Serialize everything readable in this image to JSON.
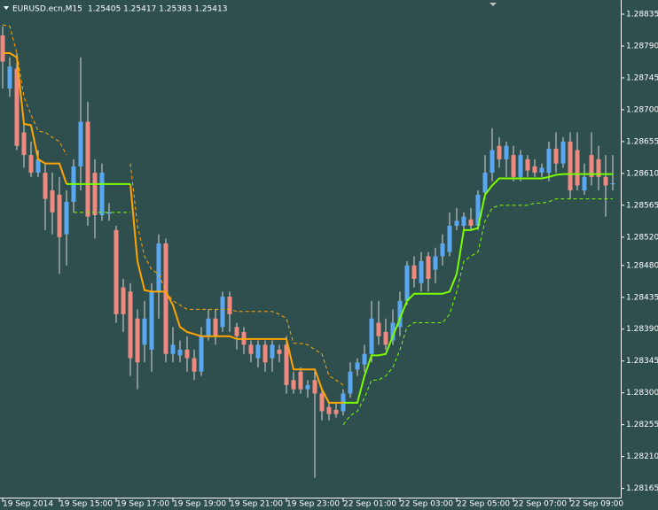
{
  "chart_data": {
    "type": "candlestick",
    "title": "EURUSD.ecn,M15",
    "subtitle": "1.25405 1.25417 1.25383 1.25413",
    "background": "#2f4f4f",
    "up_color": "#5aa7f0",
    "down_color": "#f08a80",
    "wick_color": "#d8d8d8",
    "categories": [
      "19 Sep 2014",
      null,
      null,
      null,
      null,
      null,
      null,
      null,
      "19 Sep 15:00",
      null,
      null,
      null,
      null,
      null,
      null,
      null,
      "19 Sep 17:00",
      null,
      null,
      null,
      null,
      null,
      null,
      null,
      "19 Sep 19:00",
      null,
      null,
      null,
      null,
      null,
      null,
      null,
      "19 Sep 21:00",
      null,
      null,
      null,
      null,
      null,
      null,
      null,
      "19 Sep 23:00",
      null,
      null,
      null,
      null,
      null,
      null,
      null,
      "22 Sep 01:00",
      null,
      null,
      null,
      null,
      null,
      null,
      null,
      "22 Sep 03:00",
      null,
      null,
      null,
      null,
      null,
      null,
      null,
      "22 Sep 05:00",
      null,
      null,
      null,
      null,
      null,
      null,
      null,
      "22 Sep 07:00",
      null,
      null,
      null,
      null,
      null,
      null,
      null,
      "22 Sep 09:00",
      null,
      null,
      null,
      null,
      null,
      null
    ],
    "open": [
      1.28805,
      1.2873,
      1.28758,
      1.28668,
      1.28636,
      1.28611,
      1.28611,
      1.28586,
      1.2858,
      1.28524,
      1.2857,
      1.2862,
      1.28683,
      1.28611,
      1.28551,
      1.28553,
      1.2853,
      1.28449,
      1.28443,
      1.28405,
      1.28368,
      1.28361,
      1.28443,
      1.28511,
      1.28355,
      1.28353,
      1.28361,
      1.28349,
      1.2833,
      1.2838,
      1.28405,
      1.28393,
      1.28436,
      1.28393,
      1.28386,
      1.28368,
      1.28349,
      1.28368,
      1.28349,
      1.28361,
      1.28368,
      1.28318,
      1.2833,
      1.28305,
      1.28318,
      1.28299,
      1.2828,
      1.28276,
      1.28274,
      1.28299,
      1.28333,
      1.2834,
      1.28355,
      1.28399,
      1.28386,
      1.28374,
      1.28393,
      1.2843,
      1.2848,
      1.28455,
      1.28493,
      1.28474,
      1.28493,
      1.28499,
      1.28536,
      1.28536,
      1.28545,
      1.28536,
      1.28583,
      1.28611,
      1.28649,
      1.2863,
      1.28636,
      1.28605,
      1.2863,
      1.2862,
      1.28611,
      1.28611,
      1.28645,
      1.28624,
      1.28655,
      1.28643,
      1.28586,
      1.28636,
      1.2863,
      1.28605,
      1.28595
    ],
    "high": [
      1.28818,
      1.28774,
      1.2878,
      1.2868,
      1.28655,
      1.28643,
      1.28624,
      1.28611,
      1.28605,
      1.28586,
      1.2863,
      1.28774,
      1.28711,
      1.2863,
      1.28624,
      1.28568,
      1.28536,
      1.28461,
      1.28455,
      1.28418,
      1.2843,
      1.28455,
      1.28524,
      1.28518,
      1.28393,
      1.28374,
      1.2838,
      1.28361,
      1.28393,
      1.28418,
      1.28418,
      1.28443,
      1.28443,
      1.28399,
      1.28393,
      1.28374,
      1.28374,
      1.28374,
      1.28374,
      1.28368,
      1.2838,
      1.2833,
      1.28336,
      1.28318,
      1.2833,
      1.28305,
      1.28286,
      1.28286,
      1.28305,
      1.28343,
      1.28349,
      1.28368,
      1.2843,
      1.2843,
      1.28405,
      1.28418,
      1.28443,
      1.28486,
      1.28493,
      1.28499,
      1.28499,
      1.28505,
      1.28524,
      1.28555,
      1.28561,
      1.28555,
      1.28561,
      1.28586,
      1.28636,
      1.28674,
      1.28661,
      1.28655,
      1.28649,
      1.28643,
      1.28636,
      1.2863,
      1.28624,
      1.28655,
      1.28668,
      1.28661,
      1.28668,
      1.28668,
      1.28624,
      1.28668,
      1.28649,
      1.28636,
      1.28636
    ],
    "low": [
      1.2873,
      1.28718,
      1.28643,
      1.28618,
      1.28605,
      1.28605,
      1.2853,
      1.28524,
      1.28468,
      1.2848,
      1.28555,
      1.28586,
      1.28536,
      1.28518,
      1.28543,
      1.28543,
      1.28399,
      1.28386,
      1.28324,
      1.28305,
      1.28343,
      1.2833,
      1.28405,
      1.28343,
      1.28343,
      1.28343,
      1.2833,
      1.28318,
      1.28324,
      1.28374,
      1.28368,
      1.28386,
      1.28386,
      1.28361,
      1.28355,
      1.28343,
      1.28336,
      1.2833,
      1.2833,
      1.28343,
      1.28299,
      1.28299,
      1.28299,
      1.28293,
      1.2818,
      1.28261,
      1.28261,
      1.28265,
      1.28268,
      1.28293,
      1.28324,
      1.2833,
      1.28343,
      1.28368,
      1.28361,
      1.28368,
      1.2838,
      1.28424,
      1.28449,
      1.28443,
      1.28443,
      1.28455,
      1.2848,
      1.28493,
      1.2853,
      1.2853,
      1.2853,
      1.2853,
      1.28574,
      1.28599,
      1.28618,
      1.28605,
      1.28599,
      1.28599,
      1.28605,
      1.28605,
      1.28605,
      1.28599,
      1.28611,
      1.28618,
      1.28574,
      1.28586,
      1.2858,
      1.28593,
      1.28586,
      1.28549,
      1.28586
    ],
    "close": [
      1.28768,
      1.28761,
      1.28649,
      1.28636,
      1.28611,
      1.2863,
      1.28574,
      1.28555,
      1.2852,
      1.2857,
      1.2862,
      1.28683,
      1.28549,
      1.28551,
      1.28611,
      1.28555,
      1.28411,
      1.28411,
      1.28349,
      1.28343,
      1.28405,
      1.28443,
      1.28511,
      1.28355,
      1.28368,
      1.28361,
      1.28349,
      1.2833,
      1.2838,
      1.28405,
      1.2838,
      1.28436,
      1.28411,
      1.2838,
      1.28368,
      1.28355,
      1.28368,
      1.28343,
      1.28368,
      1.28355,
      1.28311,
      1.28305,
      1.28305,
      1.28311,
      1.28299,
      1.28274,
      1.2827,
      1.2827,
      1.28299,
      1.2833,
      1.28343,
      1.28355,
      1.28405,
      1.2838,
      1.28368,
      1.28399,
      1.2843,
      1.2848,
      1.28461,
      1.28486,
      1.28461,
      1.28493,
      1.28511,
      1.28536,
      1.28543,
      1.28549,
      1.28536,
      1.2858,
      1.28611,
      1.28643,
      1.2863,
      1.28649,
      1.28605,
      1.28636,
      1.28614,
      1.28611,
      1.28618,
      1.28645,
      1.28624,
      1.28655,
      1.28586,
      1.28593,
      1.28605,
      1.28605,
      1.28605,
      1.28593,
      1.28596
    ],
    "lines": [
      {
        "color": "#ffa500",
        "dashed": false,
        "values": [
          1.2878,
          1.2878,
          1.28774,
          1.2868,
          1.28678,
          1.2863,
          1.28624,
          1.28624,
          1.28624,
          1.28595,
          null,
          null,
          null,
          null,
          null,
          null,
          null,
          null,
          1.28595,
          1.28486,
          1.28445,
          1.28443,
          1.28443,
          1.28443,
          1.28424,
          1.28393,
          1.28386,
          1.28383,
          1.2838,
          1.2838,
          1.2838,
          1.2838,
          1.2838,
          1.28376,
          1.28376,
          1.28376,
          1.28376,
          1.28376,
          1.28376,
          1.28376,
          1.28376,
          1.28333,
          1.28333,
          1.28333,
          1.28333,
          1.28305,
          1.28286,
          1.28286,
          1.28286,
          null,
          null,
          null,
          null,
          null,
          null,
          null,
          null,
          null,
          null,
          null,
          null,
          null,
          null,
          null,
          null,
          null,
          null,
          null,
          null,
          null,
          null,
          null,
          null,
          null,
          null,
          null,
          null,
          null,
          null,
          null,
          null,
          null,
          null,
          null,
          null,
          null,
          null
        ]
      },
      {
        "color": "#7cfc00",
        "dashed": false,
        "values": [
          null,
          null,
          null,
          null,
          null,
          null,
          null,
          null,
          null,
          1.28595,
          1.28595,
          1.28595,
          1.28595,
          1.28595,
          1.28595,
          1.28595,
          1.28595,
          1.28595,
          1.28595,
          null,
          null,
          null,
          null,
          null,
          null,
          null,
          null,
          null,
          null,
          null,
          null,
          null,
          null,
          null,
          null,
          null,
          null,
          null,
          null,
          null,
          null,
          null,
          null,
          null,
          null,
          null,
          null,
          null,
          1.28286,
          1.28286,
          1.28286,
          1.28324,
          1.28353,
          1.28353,
          1.28355,
          1.2838,
          1.28405,
          1.2843,
          1.2844,
          1.2844,
          1.2844,
          1.2844,
          1.2844,
          1.28443,
          1.28468,
          1.2853,
          1.2853,
          1.28533,
          1.2858,
          1.28593,
          1.28603,
          1.28603,
          1.28603,
          1.28603,
          1.28603,
          1.28603,
          1.28603,
          1.28605,
          1.28608,
          1.28609,
          1.28609,
          1.28609,
          1.28609,
          1.28609,
          1.28609,
          1.28609,
          1.28609
        ]
      },
      {
        "color": "#ffa500",
        "dashed": true,
        "values": [
          1.2882,
          1.28818,
          1.2878,
          1.28718,
          1.28693,
          1.2867,
          1.28668,
          1.28661,
          1.28655,
          1.28636,
          null,
          null,
          null,
          null,
          null,
          null,
          null,
          null,
          1.28624,
          1.28536,
          1.28493,
          1.28474,
          1.28468,
          1.28443,
          1.2843,
          1.28424,
          1.28418,
          1.28418,
          1.28418,
          1.28418,
          1.28418,
          1.28418,
          1.28418,
          1.28415,
          1.28415,
          1.28415,
          1.28415,
          1.28415,
          1.28415,
          1.28411,
          1.28405,
          1.2837,
          1.2837,
          1.28368,
          1.28361,
          1.28355,
          1.28324,
          1.28318,
          1.28311,
          null,
          null,
          null,
          null,
          null,
          null,
          null,
          null,
          null,
          null,
          null,
          null,
          null,
          null,
          null,
          null,
          null,
          null,
          null,
          null,
          null,
          null,
          null,
          null,
          null,
          null,
          null,
          null,
          null,
          null,
          null,
          null,
          null,
          null,
          null,
          null,
          null,
          null
        ]
      },
      {
        "color": "#7cfc00",
        "dashed": true,
        "values": [
          null,
          null,
          null,
          null,
          null,
          null,
          null,
          null,
          null,
          null,
          1.28555,
          1.28555,
          1.28555,
          1.28555,
          1.28555,
          1.28555,
          1.28555,
          1.28555,
          1.28555,
          null,
          null,
          null,
          null,
          null,
          null,
          null,
          null,
          null,
          null,
          null,
          null,
          null,
          null,
          null,
          null,
          null,
          null,
          null,
          null,
          null,
          null,
          null,
          null,
          null,
          null,
          null,
          null,
          null,
          1.28255,
          1.28268,
          1.28274,
          1.28293,
          1.28318,
          1.28318,
          1.28324,
          1.28336,
          1.28361,
          1.28393,
          1.28399,
          1.28399,
          1.28399,
          1.28399,
          1.28399,
          1.28411,
          1.28443,
          1.28486,
          1.28493,
          1.28499,
          1.28543,
          1.28561,
          1.28565,
          1.28565,
          1.28565,
          1.28565,
          1.28565,
          1.28568,
          1.28568,
          1.2857,
          1.28574,
          1.28574,
          1.28574,
          1.28574,
          1.28574,
          1.28574,
          1.28574,
          1.28574,
          1.28574
        ]
      }
    ],
    "ylim": [
      1.28152,
      1.28855
    ],
    "yticks": [
      {
        "value": 1.28835,
        "label": "1.28835"
      },
      {
        "value": 1.2879,
        "label": "1.28790"
      },
      {
        "value": 1.28745,
        "label": "1.28745"
      },
      {
        "value": 1.287,
        "label": "1.28700"
      },
      {
        "value": 1.28655,
        "label": "1.28655"
      },
      {
        "value": 1.2861,
        "label": "1.28610"
      },
      {
        "value": 1.28565,
        "label": "1.28565"
      },
      {
        "value": 1.2852,
        "label": "1.28520"
      },
      {
        "value": 1.2848,
        "label": "1.28480"
      },
      {
        "value": 1.28435,
        "label": "1.28435"
      },
      {
        "value": 1.2839,
        "label": "1.28390"
      },
      {
        "value": 1.28345,
        "label": "1.28345"
      },
      {
        "value": 1.283,
        "label": "1.28300"
      },
      {
        "value": 1.28255,
        "label": "1.28255"
      },
      {
        "value": 1.2821,
        "label": "1.28210"
      },
      {
        "value": 1.28165,
        "label": "1.28165"
      }
    ]
  }
}
